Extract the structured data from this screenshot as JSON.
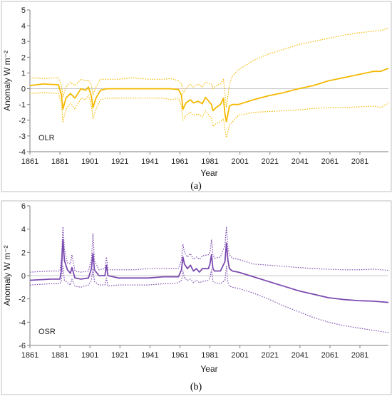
{
  "chart_data": [
    {
      "type": "line",
      "panel_caption": "(a)",
      "label": "OLR",
      "xlabel": "Year",
      "ylabel": "Anomaly W m⁻²",
      "xlim": [
        1861,
        2100
      ],
      "ylim": [
        -4,
        5
      ],
      "xticks": [
        1861,
        1881,
        1901,
        1921,
        1941,
        1961,
        1981,
        2001,
        2021,
        2041,
        2061,
        2081
      ],
      "yticks": [
        -4,
        -3,
        -2,
        -1,
        0,
        1,
        2,
        3,
        4,
        5
      ],
      "zero_line": true,
      "color": "#f5b800",
      "series": [
        {
          "style": "solid",
          "x": [
            1861,
            1870,
            1880,
            1882,
            1883,
            1885,
            1888,
            1891,
            1895,
            1898,
            1900,
            1902,
            1903,
            1905,
            1908,
            1912,
            1920,
            1930,
            1940,
            1950,
            1955,
            1960,
            1962,
            1963,
            1965,
            1968,
            1970,
            1973,
            1976,
            1978,
            1982,
            1983,
            1985,
            1988,
            1990,
            1991,
            1992,
            1994,
            1996,
            2000,
            2005,
            2010,
            2020,
            2030,
            2040,
            2050,
            2060,
            2070,
            2080,
            2090,
            2095,
            2100
          ],
          "y": [
            0.2,
            0.3,
            0.25,
            -0.4,
            -1.3,
            -0.6,
            -0.3,
            -0.6,
            0.0,
            -0.1,
            0.1,
            -0.5,
            -1.2,
            -0.6,
            -0.1,
            0.0,
            0.0,
            0.0,
            0.0,
            0.0,
            0.0,
            -0.05,
            -0.4,
            -1.3,
            -0.9,
            -0.7,
            -0.9,
            -0.8,
            -0.95,
            -0.55,
            -1.0,
            -1.4,
            -1.2,
            -1.0,
            -0.6,
            -1.6,
            -2.1,
            -1.1,
            -1.0,
            -1.0,
            -0.85,
            -0.7,
            -0.45,
            -0.25,
            0.0,
            0.2,
            0.5,
            0.7,
            0.9,
            1.1,
            1.1,
            1.3
          ]
        },
        {
          "style": "dotted",
          "x": [
            1861,
            1870,
            1880,
            1882,
            1883,
            1885,
            1888,
            1891,
            1895,
            1898,
            1900,
            1902,
            1903,
            1905,
            1908,
            1912,
            1920,
            1930,
            1940,
            1950,
            1955,
            1960,
            1962,
            1963,
            1965,
            1968,
            1970,
            1973,
            1976,
            1978,
            1982,
            1983,
            1985,
            1988,
            1990,
            1991,
            1992,
            1994,
            1996,
            2000,
            2005,
            2010,
            2020,
            2030,
            2040,
            2050,
            2060,
            2070,
            2080,
            2090,
            2095,
            2100
          ],
          "y": [
            0.7,
            0.65,
            0.7,
            0.2,
            -0.5,
            0.1,
            0.4,
            0.2,
            0.6,
            0.5,
            0.55,
            0.2,
            -0.4,
            0.1,
            0.6,
            0.6,
            0.6,
            0.7,
            0.6,
            0.6,
            0.65,
            0.5,
            0.3,
            -0.3,
            0.0,
            0.3,
            0.1,
            0.3,
            0.1,
            0.4,
            0.3,
            0.0,
            0.2,
            0.3,
            0.6,
            -0.3,
            -1.2,
            0.3,
            0.8,
            1.2,
            1.5,
            1.8,
            2.2,
            2.5,
            2.8,
            3.0,
            3.2,
            3.4,
            3.55,
            3.65,
            3.7,
            3.85
          ]
        },
        {
          "style": "dotted",
          "x": [
            1861,
            1870,
            1880,
            1882,
            1883,
            1885,
            1888,
            1891,
            1895,
            1898,
            1900,
            1902,
            1903,
            1905,
            1908,
            1912,
            1920,
            1930,
            1940,
            1950,
            1955,
            1960,
            1962,
            1963,
            1965,
            1968,
            1970,
            1973,
            1976,
            1978,
            1982,
            1983,
            1985,
            1988,
            1990,
            1991,
            1992,
            1994,
            1996,
            2000,
            2005,
            2010,
            2020,
            2030,
            2040,
            2050,
            2060,
            2070,
            2080,
            2090,
            2095,
            2100
          ],
          "y": [
            -0.3,
            -0.25,
            -0.3,
            -1.0,
            -2.1,
            -1.3,
            -0.9,
            -1.3,
            -0.6,
            -0.7,
            -0.4,
            -1.1,
            -1.9,
            -1.3,
            -0.7,
            -0.6,
            -0.6,
            -0.6,
            -0.6,
            -0.6,
            -0.7,
            -0.6,
            -1.1,
            -2.0,
            -1.7,
            -1.5,
            -1.7,
            -1.6,
            -1.8,
            -1.4,
            -1.9,
            -2.4,
            -2.2,
            -2.1,
            -1.9,
            -2.6,
            -3.1,
            -2.3,
            -2.1,
            -1.7,
            -1.6,
            -1.5,
            -1.45,
            -1.4,
            -1.35,
            -1.25,
            -1.2,
            -1.2,
            -1.15,
            -1.1,
            -1.2,
            -0.9
          ]
        }
      ]
    },
    {
      "type": "line",
      "panel_caption": "(b)",
      "label": "OSR",
      "xlabel": "Year",
      "ylabel": "Anomaly W m⁻²",
      "xlim": [
        1861,
        2100
      ],
      "ylim": [
        -6,
        6
      ],
      "xticks": [
        1861,
        1881,
        1901,
        1921,
        1941,
        1961,
        1981,
        2001,
        2021,
        2041,
        2061,
        2081
      ],
      "yticks": [
        -6,
        -4,
        -2,
        0,
        2,
        4,
        6
      ],
      "zero_line": true,
      "color": "#7b4ab0",
      "series": [
        {
          "style": "solid",
          "x": [
            1861,
            1875,
            1881,
            1882,
            1883,
            1884,
            1886,
            1888,
            1889,
            1891,
            1895,
            1900,
            1902,
            1903,
            1904,
            1907,
            1911,
            1912,
            1913,
            1920,
            1930,
            1940,
            1950,
            1955,
            1960,
            1962,
            1963,
            1964,
            1966,
            1968,
            1970,
            1972,
            1974,
            1976,
            1980,
            1981,
            1982,
            1983,
            1984,
            1988,
            1991,
            1992,
            1993,
            1994,
            1996,
            2000,
            2005,
            2010,
            2020,
            2030,
            2040,
            2050,
            2060,
            2070,
            2080,
            2090,
            2100
          ],
          "y": [
            -0.4,
            -0.3,
            -0.3,
            0.5,
            3.1,
            1.3,
            0.5,
            0.2,
            0.7,
            -0.2,
            -0.3,
            -0.2,
            0.6,
            1.9,
            0.5,
            0.0,
            0.0,
            0.9,
            0.0,
            -0.2,
            -0.2,
            -0.2,
            -0.1,
            -0.1,
            -0.1,
            0.5,
            1.6,
            1.0,
            0.6,
            0.9,
            0.4,
            0.6,
            0.3,
            0.6,
            0.6,
            1.0,
            1.8,
            0.6,
            0.4,
            0.4,
            1.2,
            2.8,
            1.3,
            0.6,
            0.4,
            0.3,
            0.1,
            -0.1,
            -0.5,
            -0.9,
            -1.3,
            -1.6,
            -1.9,
            -2.05,
            -2.15,
            -2.2,
            -2.3
          ]
        },
        {
          "style": "dotted",
          "x": [
            1861,
            1875,
            1881,
            1882,
            1883,
            1884,
            1886,
            1888,
            1889,
            1891,
            1895,
            1900,
            1902,
            1903,
            1904,
            1907,
            1911,
            1912,
            1913,
            1920,
            1930,
            1940,
            1950,
            1955,
            1960,
            1962,
            1963,
            1964,
            1966,
            1968,
            1970,
            1972,
            1974,
            1976,
            1980,
            1981,
            1982,
            1983,
            1984,
            1988,
            1991,
            1992,
            1993,
            1994,
            1996,
            2000,
            2005,
            2010,
            2020,
            2030,
            2040,
            2050,
            2060,
            2070,
            2080,
            2090,
            2100
          ],
          "y": [
            0.3,
            0.4,
            0.4,
            1.6,
            4.2,
            2.3,
            1.1,
            1.0,
            1.8,
            0.4,
            0.3,
            0.4,
            1.4,
            3.6,
            1.3,
            0.5,
            0.6,
            1.6,
            0.5,
            0.5,
            0.5,
            0.6,
            0.6,
            0.6,
            0.6,
            1.3,
            2.7,
            2.0,
            1.6,
            1.9,
            1.4,
            1.6,
            1.4,
            1.7,
            1.8,
            2.0,
            3.1,
            1.8,
            1.5,
            1.6,
            2.6,
            4.2,
            2.4,
            1.8,
            1.5,
            1.4,
            1.2,
            1.0,
            0.9,
            0.8,
            0.7,
            0.6,
            0.55,
            0.5,
            0.5,
            0.55,
            0.45
          ]
        },
        {
          "style": "dotted",
          "x": [
            1861,
            1875,
            1881,
            1882,
            1883,
            1884,
            1886,
            1888,
            1889,
            1891,
            1895,
            1900,
            1902,
            1903,
            1904,
            1907,
            1911,
            1912,
            1913,
            1920,
            1930,
            1940,
            1950,
            1955,
            1960,
            1962,
            1963,
            1964,
            1966,
            1968,
            1970,
            1972,
            1974,
            1976,
            1980,
            1981,
            1982,
            1983,
            1984,
            1988,
            1991,
            1992,
            1993,
            1994,
            1996,
            2000,
            2005,
            2010,
            2020,
            2030,
            2040,
            2050,
            2060,
            2070,
            2080,
            2090,
            2100
          ],
          "y": [
            -0.8,
            -0.7,
            -0.7,
            -0.4,
            0.8,
            -0.4,
            -0.6,
            -0.8,
            -0.3,
            -0.9,
            -1.0,
            -0.8,
            -0.4,
            0.6,
            -0.5,
            -0.8,
            -0.8,
            -0.2,
            -0.9,
            -0.8,
            -0.8,
            -0.8,
            -0.7,
            -0.7,
            -0.6,
            -0.4,
            0.4,
            -0.2,
            -0.4,
            -0.3,
            -0.6,
            -0.4,
            -0.6,
            -0.5,
            -0.4,
            -0.2,
            0.5,
            -0.5,
            -0.6,
            -0.7,
            -0.4,
            0.8,
            -0.6,
            -0.9,
            -1.0,
            -1.1,
            -1.3,
            -1.5,
            -2.0,
            -2.6,
            -3.1,
            -3.6,
            -4.0,
            -4.3,
            -4.5,
            -4.7,
            -4.9
          ]
        }
      ]
    }
  ]
}
